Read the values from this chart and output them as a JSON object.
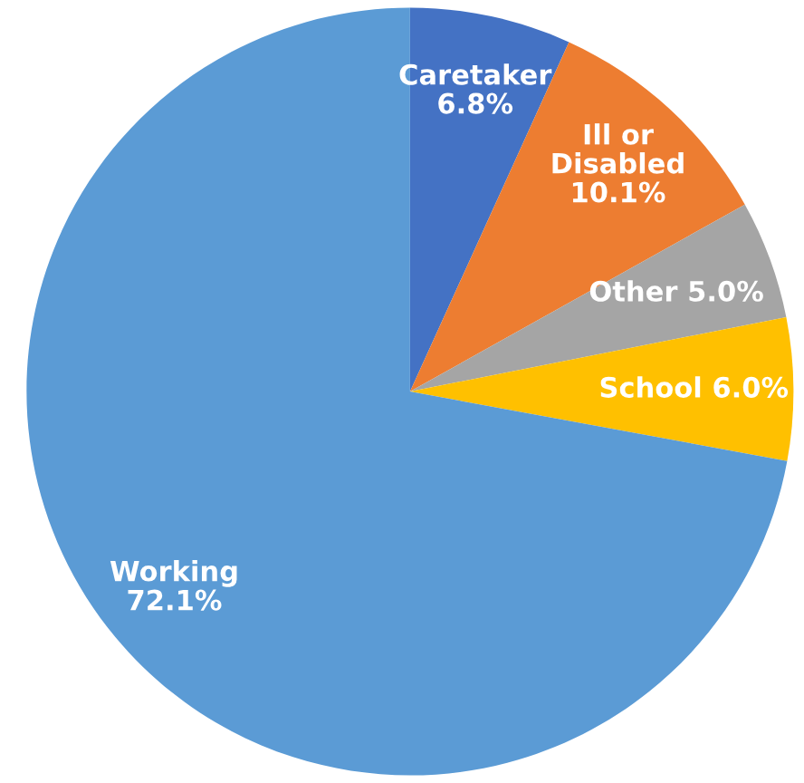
{
  "chart_data": {
    "type": "pie",
    "categories": [
      "Caretaker",
      "Ill or\nDisabled",
      "Other",
      "School",
      "Working"
    ],
    "values": [
      6.8,
      10.1,
      5.0,
      6.0,
      72.1
    ],
    "value_labels": [
      "6.8%",
      "10.1%",
      "5.0%",
      "6.0%",
      "72.1%"
    ],
    "colors": [
      "#4472c4",
      "#ed7d31",
      "#a5a5a5",
      "#ffc000",
      "#5b9bd5"
    ],
    "legend": false
  }
}
